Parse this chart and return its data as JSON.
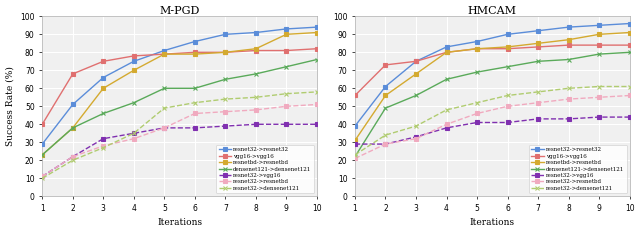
{
  "iterations": [
    1,
    2,
    3,
    4,
    5,
    6,
    7,
    8,
    9,
    10
  ],
  "mpgd": {
    "resnet32_resnet32": [
      29,
      51,
      66,
      75,
      81,
      86,
      90,
      91,
      93,
      94
    ],
    "vgg16_vgg16": [
      40,
      68,
      75,
      78,
      79,
      80,
      80,
      81,
      81,
      82
    ],
    "resnetbd_resnetbd": [
      23,
      38,
      60,
      70,
      79,
      79,
      80,
      82,
      90,
      91
    ],
    "densenet121_densenet121": [
      23,
      38,
      46,
      52,
      60,
      60,
      65,
      68,
      72,
      76
    ],
    "resnet32_vgg16": [
      11,
      22,
      32,
      35,
      38,
      38,
      39,
      40,
      40,
      40
    ],
    "resnet32_resnetbd": [
      11,
      22,
      28,
      32,
      38,
      46,
      47,
      48,
      50,
      51
    ],
    "resnet32_densenet121": [
      10,
      20,
      27,
      35,
      49,
      52,
      54,
      55,
      57,
      58
    ]
  },
  "hmcam": {
    "resnet32_resnet32": [
      39,
      61,
      75,
      83,
      86,
      90,
      92,
      94,
      95,
      96
    ],
    "vgg16_vgg16": [
      56,
      73,
      75,
      80,
      82,
      82,
      83,
      84,
      84,
      84
    ],
    "resnetbd_resnetbd": [
      31,
      56,
      68,
      80,
      82,
      83,
      85,
      87,
      90,
      91
    ],
    "densenet121_densenet121": [
      22,
      49,
      56,
      65,
      69,
      72,
      75,
      76,
      79,
      80
    ],
    "resnet32_vgg16": [
      29,
      29,
      33,
      38,
      41,
      41,
      43,
      43,
      44,
      44
    ],
    "resnet32_resnetbd": [
      21,
      29,
      32,
      40,
      46,
      50,
      52,
      54,
      55,
      56
    ],
    "resnet32_densenet121": [
      23,
      34,
      39,
      48,
      52,
      56,
      58,
      60,
      61,
      61
    ]
  },
  "solid_keys": [
    "resnet32_resnet32",
    "vgg16_vgg16",
    "resnetbd_resnetbd",
    "densenet121_densenet121"
  ],
  "dashed_keys": [
    "resnet32_vgg16",
    "resnet32_resnetbd",
    "resnet32_densenet121"
  ],
  "colors": {
    "resnet32_resnet32": "#5b8dd9",
    "vgg16_vgg16": "#e07070",
    "resnetbd_resnetbd": "#d4aa30",
    "densenet121_densenet121": "#5aaa5a",
    "resnet32_vgg16": "#8030b0",
    "resnet32_resnetbd": "#f0aabf",
    "resnet32_densenet121": "#b0cc70"
  },
  "markers": {
    "resnet32_resnet32": "s",
    "vgg16_vgg16": "s",
    "resnetbd_resnetbd": "s",
    "densenet121_densenet121": "x",
    "resnet32_vgg16": "s",
    "resnet32_resnetbd": "s",
    "resnet32_densenet121": "x"
  },
  "labels": {
    "resnet32_resnet32": "resnet32->resnet32",
    "vgg16_vgg16": "vgg16->vgg16",
    "resnetbd_resnetbd": "resnetbd->resnetbd",
    "densenet121_densenet121": "densenet121->densenet121",
    "resnet32_vgg16": "resnet32->vgg16",
    "resnet32_resnetbd": "resnet32->resnetbd",
    "resnet32_densenet121": "resnet32->densenet121"
  },
  "title_mpgd": "M-PGD",
  "title_hmcam": "HMCAM",
  "xlabel": "Iterations",
  "ylabel": "Success Rate (%)",
  "ylim": [
    0,
    100
  ],
  "yticks": [
    0,
    10,
    20,
    30,
    40,
    50,
    60,
    70,
    80,
    90,
    100
  ],
  "bg_color": "#f0f0f0",
  "grid_color": "#ffffff"
}
